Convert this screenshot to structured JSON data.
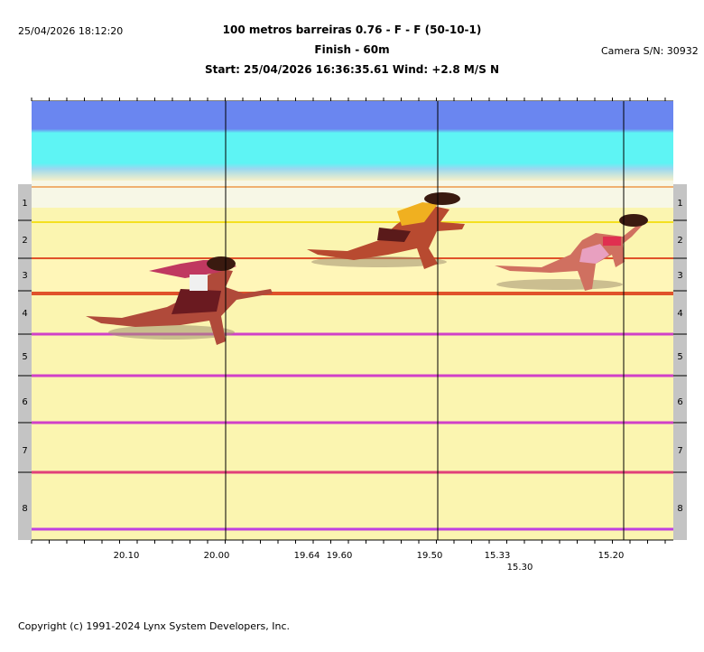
{
  "header": {
    "datetime": "25/04/2026 18:12:20",
    "title": "100 metros barreiras 0.76 - F - F (50-10-1)",
    "subtitle": "Finish - 60m",
    "start_line": "Start: 25/04/2026 16:36:35.61    Wind: +2.8 M/S N",
    "camera": "Camera S/N: 30932"
  },
  "lanes": [
    "1",
    "2",
    "3",
    "4",
    "5",
    "6",
    "7",
    "8"
  ],
  "time_labels": [
    "20.10",
    "20.00",
    "19.64",
    "19.60",
    "19.50",
    "15.33",
    "15.30",
    "15.20"
  ],
  "colors": {
    "sky_blue": "#6a86f0",
    "sky_cyan": "#5ef4f4",
    "track_yellow": "#fbf5b0",
    "lane_line_red": "#e0522a",
    "lane_line_magenta": "#d040c8",
    "side_bar": "#c4c4c4"
  },
  "footer": {
    "copyright": "Copyright (c) 1991-2024 Lynx System Developers, Inc."
  }
}
